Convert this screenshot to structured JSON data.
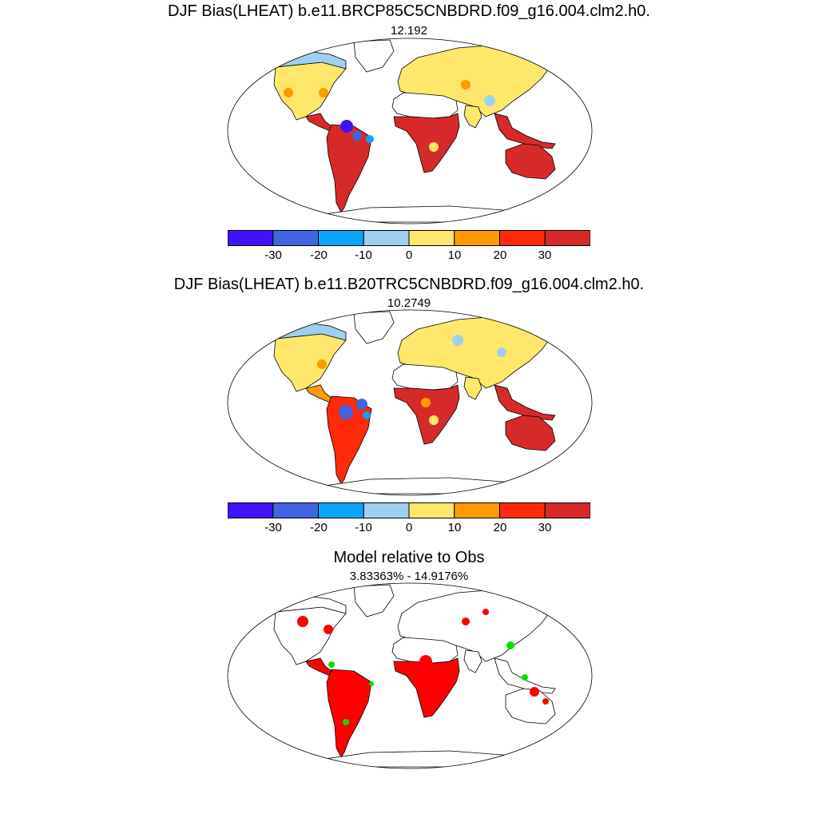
{
  "panels": [
    {
      "title": "DJF Bias(LHEAT) b.e11.BRCP85C5CNBDRD.f09_g16.004.clm2.h0.",
      "subtitle": "12.192",
      "map": {
        "type": "bias",
        "regions": [
          {
            "name": "north-america",
            "color": "#ffe76c"
          },
          {
            "name": "canada-arctic",
            "color": "#9ecfee"
          },
          {
            "name": "greenland",
            "color": "#ffffff"
          },
          {
            "name": "central-america",
            "color": "#d62a2a"
          },
          {
            "name": "south-america",
            "color": "#d62a2a"
          },
          {
            "name": "europe-asia",
            "color": "#ffe76c"
          },
          {
            "name": "sahara",
            "color": "#ffffff"
          },
          {
            "name": "africa",
            "color": "#d62a2a"
          },
          {
            "name": "india",
            "color": "#ffe76c"
          },
          {
            "name": "se-asia",
            "color": "#d62a2a"
          },
          {
            "name": "australia",
            "color": "#d62a2a"
          },
          {
            "name": "antarctica",
            "color": "#ffffff"
          }
        ]
      }
    },
    {
      "title": "DJF Bias(LHEAT) b.e11.B20TRC5CNBDRD.f09_g16.004.clm2.h0.",
      "subtitle": "10.2749",
      "map": {
        "type": "bias",
        "regions": [
          {
            "name": "north-america",
            "color": "#ffe76c"
          },
          {
            "name": "canada-arctic",
            "color": "#9ecfee"
          },
          {
            "name": "greenland",
            "color": "#ffffff"
          },
          {
            "name": "central-america",
            "color": "#ff9a00"
          },
          {
            "name": "south-america",
            "color": "#ff2a0a"
          },
          {
            "name": "europe-asia",
            "color": "#ffe76c"
          },
          {
            "name": "sahara",
            "color": "#ffffff"
          },
          {
            "name": "africa",
            "color": "#d62a2a"
          },
          {
            "name": "india",
            "color": "#ffe76c"
          },
          {
            "name": "se-asia",
            "color": "#d62a2a"
          },
          {
            "name": "australia",
            "color": "#d62a2a"
          },
          {
            "name": "antarctica",
            "color": "#ffffff"
          }
        ]
      }
    },
    {
      "title": "Model relative to Obs",
      "subtitle": "3.83363% - 14.9176%",
      "map": {
        "type": "significance",
        "regions": [
          {
            "name": "north-america",
            "color": "#ffffff"
          },
          {
            "name": "canada-arctic",
            "color": "#ffffff"
          },
          {
            "name": "greenland",
            "color": "#ffffff"
          },
          {
            "name": "central-america",
            "color": "#ff0000"
          },
          {
            "name": "south-america",
            "color": "#ff0000"
          },
          {
            "name": "europe-asia",
            "color": "#ffffff"
          },
          {
            "name": "sahara",
            "color": "#ffffff"
          },
          {
            "name": "africa",
            "color": "#ff0000"
          },
          {
            "name": "india",
            "color": "#ffffff"
          },
          {
            "name": "se-asia",
            "color": "#ffffff"
          },
          {
            "name": "australia",
            "color": "#ffffff"
          },
          {
            "name": "antarctica",
            "color": "#ffffff"
          }
        ]
      }
    }
  ],
  "colorbar": {
    "colors": [
      "#3f12fa",
      "#4164e0",
      "#0ba4fa",
      "#9ecfee",
      "#ffe76c",
      "#ff9a00",
      "#ff2a0a",
      "#d62a2a"
    ],
    "tick_labels": [
      "-30",
      "-20",
      "-10",
      "0",
      "10",
      "20",
      "30"
    ]
  },
  "significance_colors": {
    "model_higher": "#ff0000",
    "model_lower": "#00e000"
  }
}
